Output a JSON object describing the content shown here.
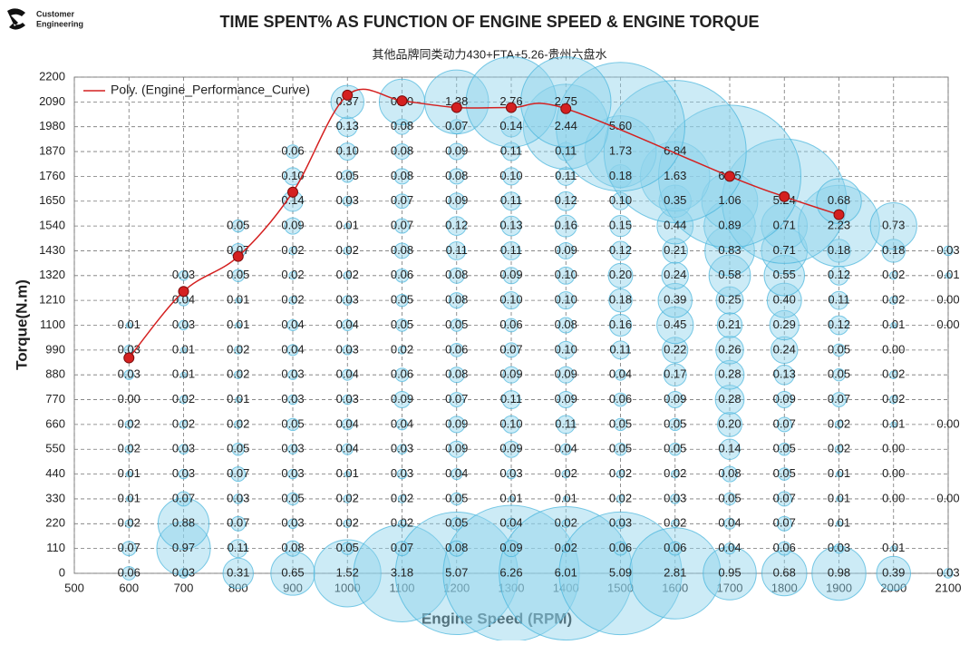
{
  "chart_data": {
    "type": "bubble",
    "brand": [
      "Customer",
      "Engineering"
    ],
    "title": "TIME SPENT% AS FUNCTION OF ENGINE SPEED & ENGINE TORQUE",
    "subtitle": "其他品牌同类动力430+FTA+5.26-贵州六盘水",
    "x_label": "Engine Speed (RPM)",
    "y_label": "Torque(N.m)",
    "xlim": [
      500,
      2100
    ],
    "ylim": [
      0,
      2200
    ],
    "xticks": [
      500,
      600,
      700,
      800,
      900,
      1000,
      1100,
      1200,
      1300,
      1400,
      1500,
      1600,
      1700,
      1800,
      1900,
      2000,
      2100
    ],
    "yticks": [
      0,
      110,
      220,
      330,
      440,
      550,
      660,
      770,
      880,
      990,
      1100,
      1210,
      1320,
      1430,
      1540,
      1650,
      1760,
      1870,
      1980,
      2090,
      2200
    ],
    "grid": true,
    "bubble_color": "#8fd3ec",
    "x": [
      600,
      700,
      800,
      900,
      1000,
      1100,
      1200,
      1300,
      1400,
      1500,
      1600,
      1700,
      1800,
      1900,
      2000,
      2100
    ],
    "y": [
      0,
      110,
      220,
      330,
      440,
      550,
      660,
      770,
      880,
      990,
      1100,
      1210,
      1320,
      1430,
      1540,
      1650,
      1760,
      1870,
      1980,
      2090
    ],
    "values": [
      [
        0.06,
        0.03,
        0.31,
        0.65,
        1.52,
        3.18,
        5.07,
        6.26,
        6.01,
        5.09,
        2.81,
        0.95,
        0.68,
        0.98,
        0.39,
        0.03
      ],
      [
        0.07,
        0.97,
        0.11,
        0.08,
        0.05,
        0.07,
        0.08,
        0.09,
        0.02,
        0.06,
        0.06,
        0.04,
        0.06,
        0.03,
        0.01,
        null
      ],
      [
        0.02,
        0.88,
        0.07,
        0.03,
        0.02,
        0.02,
        0.05,
        0.04,
        0.02,
        0.03,
        0.02,
        0.04,
        0.07,
        0.01,
        null,
        null
      ],
      [
        0.01,
        0.07,
        0.03,
        0.05,
        0.02,
        0.02,
        0.05,
        0.01,
        0.01,
        0.02,
        0.03,
        0.05,
        0.07,
        0.01,
        0.0,
        0.0
      ],
      [
        0.01,
        0.03,
        0.07,
        0.03,
        0.01,
        0.03,
        0.04,
        0.03,
        0.02,
        0.02,
        0.02,
        0.08,
        0.05,
        0.01,
        0.0,
        null
      ],
      [
        0.02,
        0.03,
        0.05,
        0.03,
        0.04,
        0.03,
        0.09,
        0.09,
        0.04,
        0.05,
        0.05,
        0.14,
        0.05,
        0.02,
        0.0,
        null
      ],
      [
        0.02,
        0.02,
        0.02,
        0.05,
        0.04,
        0.04,
        0.09,
        0.1,
        0.11,
        0.05,
        0.05,
        0.2,
        0.07,
        0.02,
        0.01,
        0.0
      ],
      [
        0.0,
        0.02,
        0.01,
        0.03,
        0.03,
        0.09,
        0.07,
        0.11,
        0.09,
        0.06,
        0.09,
        0.28,
        0.09,
        0.07,
        0.02,
        null
      ],
      [
        0.03,
        0.01,
        0.02,
        0.03,
        0.04,
        0.06,
        0.08,
        0.09,
        0.09,
        0.04,
        0.17,
        0.28,
        0.13,
        0.05,
        0.02,
        null
      ],
      [
        0.03,
        0.01,
        0.02,
        0.04,
        0.03,
        0.02,
        0.06,
        0.07,
        0.1,
        0.11,
        0.22,
        0.26,
        0.24,
        0.05,
        0.0,
        null
      ],
      [
        0.01,
        0.03,
        0.01,
        0.04,
        0.04,
        0.05,
        0.05,
        0.06,
        0.08,
        0.16,
        0.45,
        0.21,
        0.29,
        0.12,
        0.01,
        0.0
      ],
      [
        null,
        0.04,
        0.01,
        0.02,
        0.03,
        0.05,
        0.08,
        0.1,
        0.1,
        0.18,
        0.39,
        0.25,
        0.4,
        0.11,
        0.02,
        0.0
      ],
      [
        null,
        0.03,
        0.05,
        0.02,
        0.02,
        0.06,
        0.08,
        0.09,
        0.1,
        0.2,
        0.24,
        0.58,
        0.55,
        0.12,
        0.02,
        0.01
      ],
      [
        null,
        null,
        0.07,
        0.02,
        0.02,
        0.08,
        0.11,
        0.11,
        0.09,
        0.12,
        0.21,
        0.83,
        0.71,
        0.18,
        0.18,
        0.03
      ],
      [
        null,
        null,
        0.05,
        0.09,
        0.01,
        0.07,
        0.12,
        0.13,
        0.16,
        0.15,
        0.44,
        0.89,
        0.71,
        2.23,
        0.73,
        null
      ],
      [
        null,
        null,
        null,
        0.14,
        0.03,
        0.07,
        0.09,
        0.11,
        0.12,
        0.1,
        0.35,
        1.06,
        5.24,
        0.68,
        null,
        null
      ],
      [
        null,
        null,
        null,
        0.1,
        0.05,
        0.08,
        0.08,
        0.1,
        0.11,
        0.18,
        1.63,
        6.85,
        null,
        null,
        null,
        null
      ],
      [
        null,
        null,
        null,
        0.06,
        0.1,
        0.08,
        0.09,
        0.11,
        0.11,
        1.73,
        6.84,
        null,
        null,
        null,
        null,
        null
      ],
      [
        null,
        null,
        null,
        null,
        0.13,
        0.08,
        0.07,
        0.14,
        2.44,
        5.6,
        null,
        null,
        null,
        null,
        null,
        null
      ],
      [
        null,
        null,
        null,
        null,
        0.37,
        0.7,
        1.38,
        2.76,
        2.75,
        null,
        null,
        null,
        null,
        null,
        null,
        null
      ]
    ],
    "value_labels": [
      [
        "0.06",
        "0.03",
        "0.31",
        "0.65",
        "1.52",
        "3.18",
        "5.07",
        "6.26",
        "6.01",
        "5.09",
        "2.81",
        "0.95",
        "0.68",
        "0.98",
        "0.39",
        "0.03"
      ],
      [
        "0.07",
        "0.97",
        "0.11",
        "0.08",
        "0.05",
        "0.07",
        "0.08",
        "0.09",
        "0.02",
        "0.06",
        "0.06",
        "0.04",
        "0.06",
        "0.03",
        "0.01",
        null
      ],
      [
        "0.02",
        "0.88",
        "0.07",
        "0.03",
        "0.02",
        "0.02",
        "0.05",
        "0.04",
        "0.02",
        "0.03",
        "0.02",
        "0.04",
        "0.07",
        "0.01",
        null,
        null
      ],
      [
        "0.01",
        "0.07",
        "0.03",
        "0.05",
        "0.02",
        "0.02",
        "0.05",
        "0.01",
        "0.01",
        "0.02",
        "0.03",
        "0.05",
        "0.07",
        "0.01",
        "0.00",
        "0.00"
      ],
      [
        "0.01",
        "0.03",
        "0.07",
        "0.03",
        "0.01",
        "0.03",
        "0.04",
        "0.03",
        "0.02",
        "0.02",
        "0.02",
        "0.08",
        "0.05",
        "0.01",
        "0.00",
        null
      ],
      [
        "0.02",
        "0.03",
        "0.05",
        "0.03",
        "0.04",
        "0.03",
        "0.09",
        "0.09",
        "0.04",
        "0.05",
        "0.05",
        "0.14",
        "0.05",
        "0.02",
        "0.00",
        null
      ],
      [
        "0.02",
        "0.02",
        "0.02",
        "0.05",
        "0.04",
        "0.04",
        "0.09",
        "0.10",
        "0.11",
        "0.05",
        "0.05",
        "0.20",
        "0.07",
        "0.02",
        "0.01",
        "0.00"
      ],
      [
        "0.00",
        "0.02",
        "0.01",
        "0.03",
        "0.03",
        "0.09",
        "0.07",
        "0.11",
        "0.09",
        "0.06",
        "0.09",
        "0.28",
        "0.09",
        "0.07",
        "0.02",
        null
      ],
      [
        "0.03",
        "0.01",
        "0.02",
        "0.03",
        "0.04",
        "0.06",
        "0.08",
        "0.09",
        "0.09",
        "0.04",
        "0.17",
        "0.28",
        "0.13",
        "0.05",
        "0.02",
        null
      ],
      [
        "0.03",
        "0.01",
        "0.02",
        "0.04",
        "0.03",
        "0.02",
        "0.06",
        "0.07",
        "0.10",
        "0.11",
        "0.22",
        "0.26",
        "0.24",
        "0.05",
        "0.00",
        null
      ],
      [
        "0.01",
        "0.03",
        "0.01",
        "0.04",
        "0.04",
        "0.05",
        "0.05",
        "0.06",
        "0.08",
        "0.16",
        "0.45",
        "0.21",
        "0.29",
        "0.12",
        "0.01",
        "0.00"
      ],
      [
        null,
        "0.04",
        "0.01",
        "0.02",
        "0.03",
        "0.05",
        "0.08",
        "0.10",
        "0.10",
        "0.18",
        "0.39",
        "0.25",
        "0.40",
        "0.11",
        "0.02",
        "0.00"
      ],
      [
        null,
        "0.03",
        "0.05",
        "0.02",
        "0.02",
        "0.06",
        "0.08",
        "0.09",
        "0.10",
        "0.20",
        "0.24",
        "0.58",
        "0.55",
        "0.12",
        "0.02",
        "0.01"
      ],
      [
        null,
        null,
        "0.07",
        "0.02",
        "0.02",
        "0.08",
        "0.11",
        "0.11",
        "0.09",
        "0.12",
        "0.21",
        "0.83",
        "0.71",
        "0.18",
        "0.18",
        "0.03"
      ],
      [
        null,
        null,
        "0.05",
        "0.09",
        "0.01",
        "0.07",
        "0.12",
        "0.13",
        "0.16",
        "0.15",
        "0.44",
        "0.89",
        "0.71",
        "2.23",
        "0.73",
        null
      ],
      [
        null,
        null,
        null,
        "0.14",
        "0.03",
        "0.07",
        "0.09",
        "0.11",
        "0.12",
        "0.10",
        "0.35",
        "1.06",
        "5.24",
        "0.68",
        null,
        null
      ],
      [
        null,
        null,
        null,
        "0.10",
        "0.05",
        "0.08",
        "0.08",
        "0.10",
        "0.11",
        "0.18",
        "1.63",
        "6.85",
        null,
        null,
        null,
        null
      ],
      [
        null,
        null,
        null,
        "0.06",
        "0.10",
        "0.08",
        "0.09",
        "0.11",
        "0.11",
        "1.73",
        "6.84",
        null,
        null,
        null,
        null,
        null
      ],
      [
        null,
        null,
        null,
        null,
        "0.13",
        "0.08",
        "0.07",
        "0.14",
        "2.44",
        "5.60",
        null,
        null,
        null,
        null,
        null,
        null
      ],
      [
        null,
        null,
        null,
        null,
        "0.37",
        "0.70",
        "1.38",
        "2.76",
        "2.75",
        null,
        null,
        null,
        null,
        null,
        null,
        null
      ]
    ],
    "trend": {
      "name": "Poly. (Engine_Performance_Curve)",
      "color": "#d42020",
      "x": [
        600,
        700,
        800,
        900,
        1000,
        1100,
        1200,
        1300,
        1400,
        1700,
        1800,
        1900
      ],
      "y": [
        955,
        1250,
        1405,
        1690,
        2120,
        2095,
        2065,
        2065,
        2060,
        1760,
        1670,
        1590
      ]
    },
    "legend": "top-left"
  }
}
